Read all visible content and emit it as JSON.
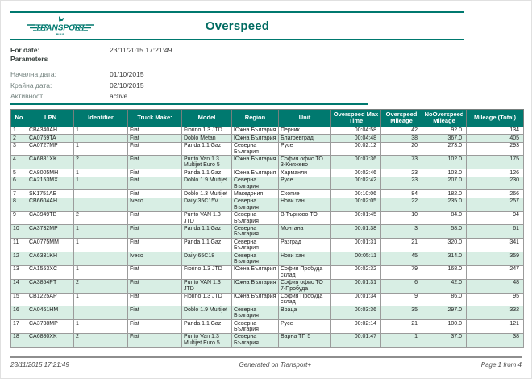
{
  "page": {
    "title": "Overspeed"
  },
  "logo": {
    "text": "TRANSPORT",
    "sub": "PLUS"
  },
  "meta": {
    "for_date_label": "For date:",
    "for_date_value": "23/11/2015 17:21:49",
    "parameters_label": "Parameters",
    "params": [
      {
        "label": "Начална дата:",
        "value": "01/10/2015"
      },
      {
        "label": "Крайна дата:",
        "value": "02/10/2015"
      },
      {
        "label": "Активност:",
        "value": "active"
      }
    ]
  },
  "table": {
    "columns": [
      "No",
      "LPN",
      "Identifier",
      "Truck Make:",
      "Model",
      "Region",
      "Unit",
      "Overspeed Max Time",
      "Overspeed Mileage",
      "NoOverspeed Mileage",
      "Mileage (Total)"
    ],
    "rows": [
      [
        "1",
        "CB4340AH",
        "1",
        "Fiat",
        "Fiorino 1.3 JTD",
        "Южна България",
        "Перник",
        "00:04:58",
        "42",
        "92.0",
        "134"
      ],
      [
        "2",
        "CA0759TA",
        "",
        "Fiat",
        "Doblo Metan",
        "Южна България",
        "Благоевград",
        "00:04:48",
        "38",
        "367.0",
        "405"
      ],
      [
        "3",
        "CA0727MP",
        "1",
        "Fiat",
        "Panda 1.1iGaz",
        "Северна България",
        "Русе",
        "00:02:12",
        "20",
        "273.0",
        "293"
      ],
      [
        "4",
        "CA6881XK",
        "2",
        "Fiat",
        "Punto Van 1.3 Multijet Euro 5",
        "Южна България",
        "София офис ТО 3-Княжево",
        "00:07:36",
        "73",
        "102.0",
        "175"
      ],
      [
        "5",
        "CA8005MH",
        "1",
        "Fiat",
        "Panda 1.1iGaz",
        "Южна България",
        "Харманли",
        "00:02:46",
        "23",
        "103.0",
        "126"
      ],
      [
        "6",
        "CA2153MX",
        "1",
        "Fiat",
        "Doblo 1.9 Multijet",
        "Северна България",
        "Русе",
        "00:02:42",
        "23",
        "207.0",
        "230"
      ],
      [
        "7",
        "SK1751AE",
        "",
        "Fiat",
        "Doblo 1.3 Multijet",
        "Македония",
        "Скопие",
        "00:10:06",
        "84",
        "182.0",
        "266"
      ],
      [
        "8",
        "CB6604AH",
        "",
        "Iveco",
        "Daily 35C15V",
        "Северна България",
        "Нови хан",
        "00:02:05",
        "22",
        "235.0",
        "257"
      ],
      [
        "9",
        "CA3949TB",
        "2",
        "Fiat",
        "Punto VAN 1.3 JTD",
        "Северна България",
        "В.Търново ТО",
        "00:01:45",
        "10",
        "84.0",
        "94"
      ],
      [
        "10",
        "CA3732MP",
        "1",
        "Fiat",
        "Panda 1.1iGaz",
        "Северна България",
        "Монтана",
        "00:01:38",
        "3",
        "58.0",
        "61"
      ],
      [
        "11",
        "CA0775MM",
        "1",
        "Fiat",
        "Panda 1.1iGaz",
        "Северна България",
        "Разград",
        "00:01:31",
        "21",
        "320.0",
        "341"
      ],
      [
        "12",
        "CA6331KH",
        "",
        "Iveco",
        "Daily 65C18",
        "Северна България",
        "Нови хан",
        "00:05:11",
        "45",
        "314.0",
        "359"
      ],
      [
        "13",
        "CA1553XC",
        "1",
        "Fiat",
        "Fiorino 1.3 JTD",
        "Южна България",
        "София Пробуда склад",
        "00:02:32",
        "79",
        "168.0",
        "247"
      ],
      [
        "14",
        "CA3854PT",
        "2",
        "Fiat",
        "Punto VAN 1.3 JTD",
        "Южна България",
        "София офис ТО 7-Пробуда",
        "00:01:31",
        "6",
        "42.0",
        "48"
      ],
      [
        "15",
        "CB1225AP",
        "1",
        "Fiat",
        "Fiorino 1.3 JTD",
        "Южна България",
        "София Пробуда склад",
        "00:01:34",
        "9",
        "86.0",
        "95"
      ],
      [
        "16",
        "CA0461HM",
        "",
        "Fiat",
        "Doblo 1.9 Multijet",
        "Северна България",
        "Враца",
        "00:03:36",
        "35",
        "297.0",
        "332"
      ],
      [
        "17",
        "CA3738MP",
        "1",
        "Fiat",
        "Panda 1.1iGaz",
        "Северна България",
        "Русе",
        "00:02:14",
        "21",
        "100.0",
        "121"
      ],
      [
        "18",
        "CA6880XK",
        "2",
        "Fiat",
        "Punto Van 1.3 Multijet Euro 5",
        "Северна България",
        "Варна ТП 5",
        "00:01:47",
        "1",
        "37.0",
        "38"
      ]
    ]
  },
  "footer": {
    "left": "23/11/2015 17:21:49",
    "center": "Generated on Transport+",
    "right": "Page 1 from 4"
  },
  "colors": {
    "teal": "#00796F",
    "teal_dark": "#006B61",
    "row_alt": "#D8EEE4",
    "border_gray": "#9B9B9B"
  }
}
